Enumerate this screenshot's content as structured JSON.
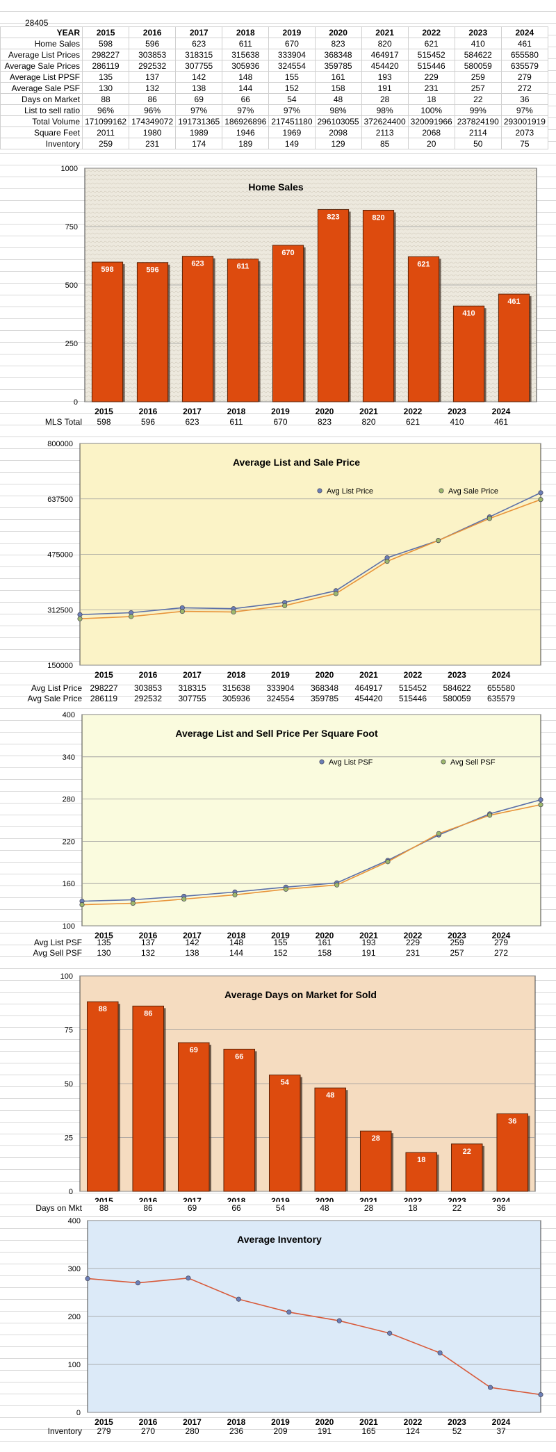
{
  "zip": "28405",
  "table": {
    "header_label": "YEAR",
    "years": [
      "2015",
      "2016",
      "2017",
      "2018",
      "2019",
      "2020",
      "2021",
      "2022",
      "2023",
      "2024"
    ],
    "rows": [
      {
        "label": "Home Sales",
        "values": [
          "598",
          "596",
          "623",
          "611",
          "670",
          "823",
          "820",
          "621",
          "410",
          "461"
        ]
      },
      {
        "label": "Average List Prices",
        "values": [
          "298227",
          "303853",
          "318315",
          "315638",
          "333904",
          "368348",
          "464917",
          "515452",
          "584622",
          "655580"
        ]
      },
      {
        "label": "Average Sale Prices",
        "values": [
          "286119",
          "292532",
          "307755",
          "305936",
          "324554",
          "359785",
          "454420",
          "515446",
          "580059",
          "635579"
        ]
      },
      {
        "label": "Average List PPSF",
        "values": [
          "135",
          "137",
          "142",
          "148",
          "155",
          "161",
          "193",
          "229",
          "259",
          "279"
        ]
      },
      {
        "label": "Average Sale PSF",
        "values": [
          "130",
          "132",
          "138",
          "144",
          "152",
          "158",
          "191",
          "231",
          "257",
          "272"
        ]
      },
      {
        "label": "Days on Market",
        "values": [
          "88",
          "86",
          "69",
          "66",
          "54",
          "48",
          "28",
          "18",
          "22",
          "36"
        ]
      },
      {
        "label": "List to sell ratio",
        "values": [
          "96%",
          "96%",
          "97%",
          "97%",
          "97%",
          "98%",
          "98%",
          "100%",
          "99%",
          "97%"
        ]
      },
      {
        "label": "Total Volume",
        "values": [
          "171099162",
          "174349072",
          "191731365",
          "186926896",
          "217451180",
          "296103055",
          "372624400",
          "320091966",
          "237824190",
          "293001919"
        ]
      },
      {
        "label": "Square Feet",
        "values": [
          "2011",
          "1980",
          "1989",
          "1946",
          "1969",
          "2098",
          "2113",
          "2068",
          "2114",
          "2073"
        ]
      },
      {
        "label": "Inventory",
        "values": [
          "259",
          "231",
          "174",
          "189",
          "149",
          "129",
          "85",
          "20",
          "50",
          "75"
        ]
      }
    ]
  },
  "colors": {
    "bar": "#DD4B0E",
    "list_line": "#5B6FA8",
    "sale_line": "#E8943A",
    "inv_line": "#D85A3A"
  },
  "chart_data": [
    {
      "type": "bar",
      "title": "Home Sales",
      "categories": [
        "2015",
        "2016",
        "2017",
        "2018",
        "2019",
        "2020",
        "2021",
        "2022",
        "2023",
        "2024"
      ],
      "values": [
        598,
        596,
        623,
        611,
        670,
        823,
        820,
        621,
        410,
        461
      ],
      "ylim": [
        0,
        1000
      ],
      "yticks": [
        "0",
        "250",
        "500",
        "750",
        "1000"
      ],
      "row_label": "MLS Total",
      "row_values": [
        "598",
        "596",
        "623",
        "611",
        "670",
        "823",
        "820",
        "621",
        "410",
        "461"
      ]
    },
    {
      "type": "line",
      "title": "Average List and Sale Price",
      "categories": [
        "2015",
        "2016",
        "2017",
        "2018",
        "2019",
        "2020",
        "2021",
        "2022",
        "2023",
        "2024"
      ],
      "series": [
        {
          "name": "Avg List Price",
          "values": [
            298227,
            303853,
            318315,
            315638,
            333904,
            368348,
            464917,
            515452,
            584622,
            655580
          ]
        },
        {
          "name": "Avg Sale Price",
          "values": [
            286119,
            292532,
            307755,
            305936,
            324554,
            359785,
            454420,
            515446,
            580059,
            635579
          ]
        }
      ],
      "ylim": [
        150000,
        800000
      ],
      "yticks": [
        "150000",
        "312500",
        "475000",
        "637500",
        "800000"
      ],
      "rows": [
        {
          "label": "Avg List Price",
          "values": [
            "298227",
            "303853",
            "318315",
            "315638",
            "333904",
            "368348",
            "464917",
            "515452",
            "584622",
            "655580"
          ]
        },
        {
          "label": "Avg Sale Price",
          "values": [
            "286119",
            "292532",
            "307755",
            "305936",
            "324554",
            "359785",
            "454420",
            "515446",
            "580059",
            "635579"
          ]
        }
      ]
    },
    {
      "type": "line",
      "title": "Average List and Sell Price Per Square Foot",
      "categories": [
        "2015",
        "2016",
        "2017",
        "2018",
        "2019",
        "2020",
        "2021",
        "2022",
        "2023",
        "2024"
      ],
      "series": [
        {
          "name": "Avg List PSF",
          "values": [
            135,
            137,
            142,
            148,
            155,
            161,
            193,
            229,
            259,
            279
          ]
        },
        {
          "name": "Avg Sell PSF",
          "values": [
            130,
            132,
            138,
            144,
            152,
            158,
            191,
            231,
            257,
            272
          ]
        }
      ],
      "ylim": [
        100,
        400
      ],
      "yticks": [
        "100",
        "160",
        "220",
        "280",
        "340",
        "400"
      ],
      "rows": [
        {
          "label": "Avg List PSF",
          "values": [
            "135",
            "137",
            "142",
            "148",
            "155",
            "161",
            "193",
            "229",
            "259",
            "279"
          ]
        },
        {
          "label": "Avg Sell PSF",
          "values": [
            "130",
            "132",
            "138",
            "144",
            "152",
            "158",
            "191",
            "231",
            "257",
            "272"
          ]
        }
      ]
    },
    {
      "type": "bar",
      "title": "Average Days on Market for Sold",
      "categories": [
        "2015",
        "2016",
        "2017",
        "2018",
        "2019",
        "2020",
        "2021",
        "2022",
        "2023",
        "2024"
      ],
      "values": [
        88,
        86,
        69,
        66,
        54,
        48,
        28,
        18,
        22,
        36
      ],
      "ylim": [
        0,
        100
      ],
      "yticks": [
        "0",
        "25",
        "50",
        "75",
        "100"
      ],
      "row_label": "Days on Mkt",
      "row_values": [
        "88",
        "86",
        "69",
        "66",
        "54",
        "48",
        "28",
        "18",
        "22",
        "36"
      ]
    },
    {
      "type": "line",
      "title": "Average Inventory",
      "categories": [
        "2015",
        "2016",
        "2017",
        "2018",
        "2019",
        "2020",
        "2021",
        "2022",
        "2023",
        "2024"
      ],
      "series": [
        {
          "values": [
            279,
            270,
            280,
            236,
            209,
            191,
            165,
            124,
            52,
            37
          ]
        }
      ],
      "ylim": [
        0,
        400
      ],
      "yticks": [
        "0",
        "100",
        "200",
        "300",
        "400"
      ],
      "row_label": "Inventory",
      "row_values": [
        "279",
        "270",
        "280",
        "236",
        "209",
        "191",
        "165",
        "124",
        "52",
        "37"
      ]
    }
  ]
}
